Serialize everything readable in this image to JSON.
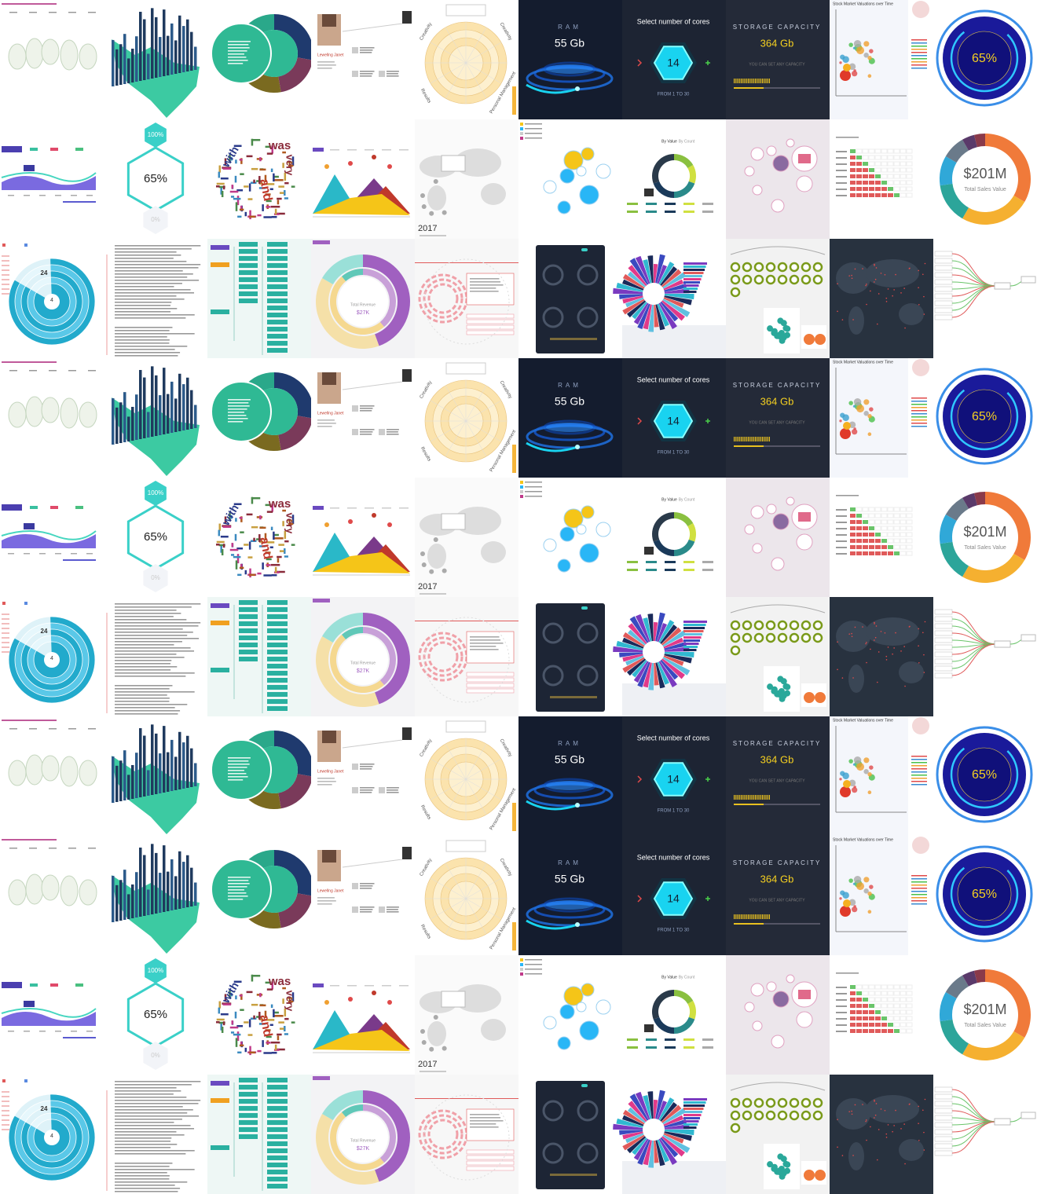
{
  "rows": [
    {
      "tiles": [
        {},
        {},
        {},
        {
          "name": "Lewellng Janet"
        },
        {
          "labels": [
            "Creativity",
            "Creativity",
            "Results",
            "Personal Management"
          ]
        },
        {
          "label": "RAM",
          "value": "55 Gb"
        },
        {
          "title": "Select number of cores",
          "value": "14",
          "range": "FROM 1 TO 30"
        },
        {
          "title": "STORAGE CAPACITY",
          "value": "364 Gb",
          "note": "YOU CAN SET ANY CAPACITY"
        },
        {
          "title": "Stock Market Valuations over Time"
        },
        {
          "value": "65%"
        }
      ]
    },
    {
      "tiles": [
        {},
        {
          "top": "100%",
          "value": "65%",
          "bottom": "0%"
        },
        {
          "words": [
            "was",
            "very",
            "with",
            "and"
          ]
        },
        {},
        {
          "year": "2017"
        },
        {},
        {
          "tabs": [
            "By Value",
            "By Count"
          ]
        },
        {},
        {},
        {
          "value": "$201M",
          "label": "Total Sales Value"
        }
      ]
    },
    {
      "tiles": [
        {
          "numbers": [
            "24",
            "4"
          ]
        },
        {},
        {},
        {
          "center": "Total Revenue",
          "value": "$27K"
        },
        {},
        {},
        {},
        {},
        {},
        {}
      ]
    },
    {
      "tiles": [
        {},
        {},
        {},
        {
          "name": "Lewellng Janet"
        },
        {
          "labels": [
            "Creativity",
            "Creativity",
            "Results",
            "Personal Management"
          ]
        },
        {
          "label": "RAM",
          "value": "55 Gb"
        },
        {
          "title": "Select number of cores",
          "value": "14",
          "range": "FROM 1 TO 30"
        },
        {
          "title": "STORAGE CAPACITY",
          "value": "364 Gb",
          "note": "YOU CAN SET ANY CAPACITY"
        },
        {
          "title": "Stock Market Valuations over Time"
        },
        {
          "value": "65%"
        }
      ]
    },
    {
      "tiles": [
        {},
        {
          "top": "100%",
          "value": "65%",
          "bottom": "0%"
        },
        {
          "words": [
            "was",
            "very",
            "with",
            "and"
          ]
        },
        {},
        {
          "year": "2017"
        },
        {},
        {
          "tabs": [
            "By Value",
            "By Count"
          ]
        },
        {},
        {},
        {
          "value": "$201M",
          "label": "Total Sales Value"
        }
      ]
    },
    {
      "tiles": [
        {
          "numbers": [
            "24",
            "4"
          ]
        },
        {},
        {},
        {
          "center": "Total Revenue",
          "value": "$27K"
        },
        {},
        {},
        {},
        {},
        {},
        {}
      ]
    },
    {
      "tiles": [
        {},
        {},
        {},
        {
          "name": "Lewellng Janet"
        },
        {
          "labels": [
            "Creativity",
            "Creativity",
            "Results",
            "Personal Management"
          ]
        },
        {
          "label": "RAM",
          "value": "55 Gb"
        },
        {
          "title": "Select number of cores",
          "value": "14",
          "range": "FROM 1 TO 30"
        },
        {
          "title": "STORAGE CAPACITY",
          "value": "364 Gb",
          "note": "YOU CAN SET ANY CAPACITY"
        },
        {
          "title": "Stock Market Valuations over Time"
        },
        {
          "value": "65%"
        }
      ]
    },
    {
      "tiles": [
        {},
        {},
        {},
        {
          "name": "Lewellng Janet"
        },
        {
          "labels": [
            "Creativity",
            "Creativity",
            "Results",
            "Personal Management"
          ]
        },
        {
          "label": "RAM",
          "value": "55 Gb"
        },
        {
          "title": "Select number of cores",
          "value": "14",
          "range": "FROM 1 TO 30"
        },
        {
          "title": "STORAGE CAPACITY",
          "value": "364 Gb",
          "note": "YOU CAN SET ANY CAPACITY"
        },
        {
          "title": "Stock Market Valuations over Time"
        },
        {
          "value": "65%"
        }
      ]
    },
    {
      "tiles": [
        {},
        {
          "top": "100%",
          "value": "65%",
          "bottom": "0%"
        },
        {
          "words": [
            "was",
            "very",
            "with",
            "and"
          ]
        },
        {},
        {
          "year": "2017"
        },
        {},
        {
          "tabs": [
            "By Value",
            "By Count"
          ]
        },
        {},
        {},
        {
          "value": "$201M",
          "label": "Total Sales Value"
        }
      ]
    },
    {
      "tiles": [
        {
          "numbers": [
            "24",
            "4"
          ]
        },
        {},
        {},
        {
          "center": "Total Revenue",
          "value": "$27K"
        },
        {},
        {},
        {},
        {},
        {},
        {}
      ]
    }
  ]
}
